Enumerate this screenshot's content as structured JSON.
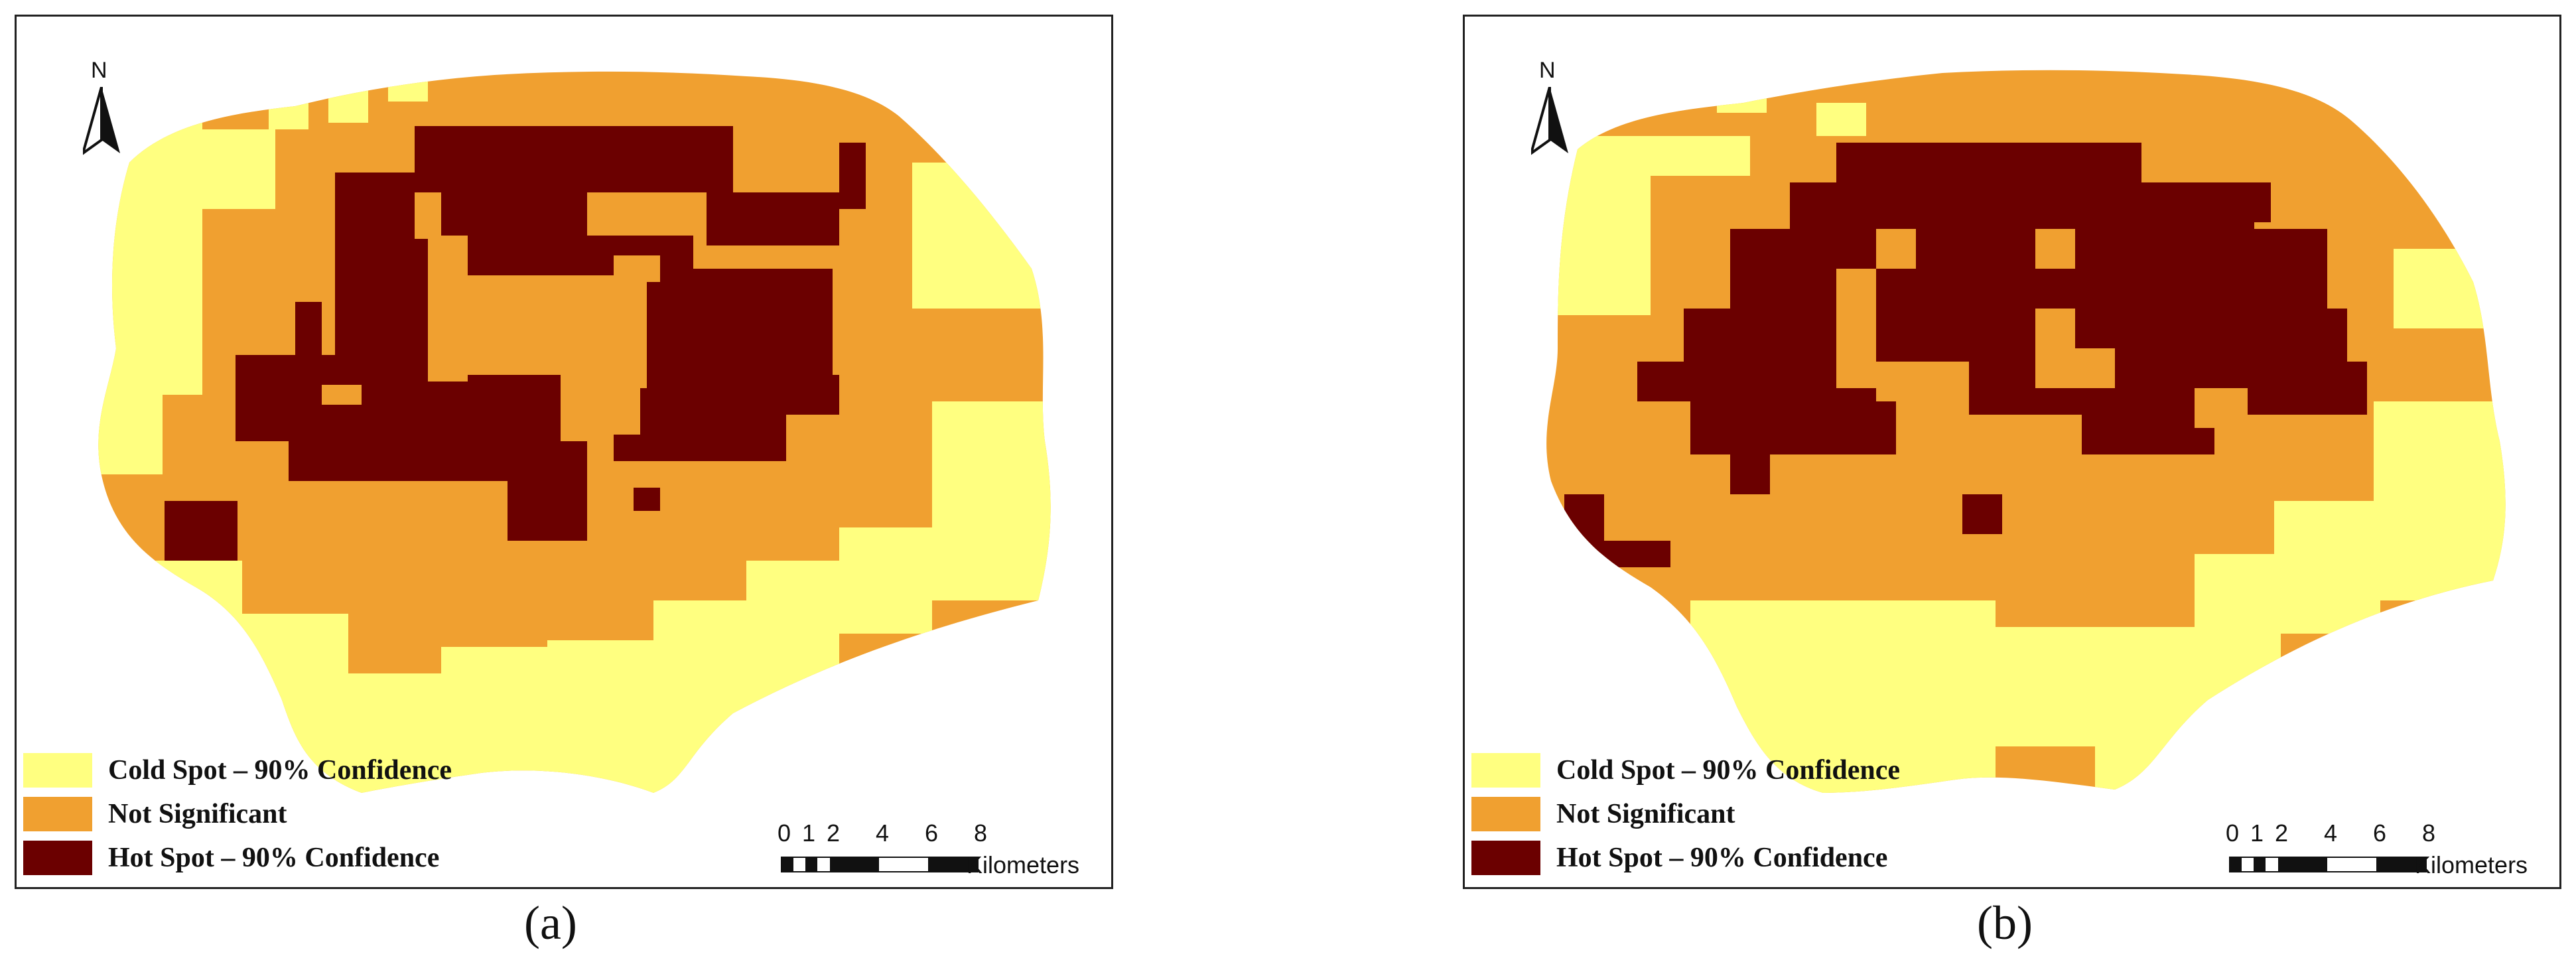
{
  "colors": {
    "cold": "#FFFF80",
    "not_significant": "#F0A030",
    "hot": "#6B0000",
    "frame": "#222222"
  },
  "legend": {
    "cold": "Cold Spot – 90% Confidence",
    "not_significant": "Not Significant",
    "hot": "Hot Spot – 90% Confidence"
  },
  "north_arrow": {
    "label": "N"
  },
  "scale_bar": {
    "ticks": [
      "0",
      "1",
      "2",
      "4",
      "6",
      "8"
    ],
    "unit": "Kilometers"
  },
  "panels": [
    {
      "caption": "(a)",
      "map_type": "hot-spot-grid",
      "resolution": "fine"
    },
    {
      "caption": "(b)",
      "map_type": "hot-spot-grid",
      "resolution": "coarse"
    }
  ]
}
